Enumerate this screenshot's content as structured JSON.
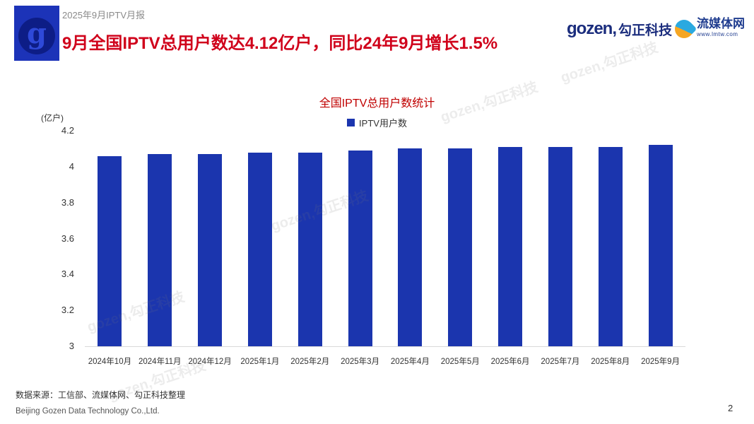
{
  "header": {
    "caption": "2025年9月IPTV月报",
    "title": "9月全国IPTV总用户数达4.12亿户，同比24年9月增长1.5%",
    "title_color": "#d0021b",
    "logo_letter": "g",
    "gozen_logo": {
      "text_en": "gozen,",
      "text_cn": "勾正科技"
    },
    "lmtw_logo": {
      "name": "流媒体网",
      "url": "www.lmtw.com"
    }
  },
  "chart_data": {
    "type": "bar",
    "title": "全国IPTV总用户数统计",
    "title_color": "#c00000",
    "unit_label": "(亿户)",
    "legend": [
      "IPTV用户数"
    ],
    "legend_position": "top",
    "categories": [
      "2024年10月",
      "2024年11月",
      "2024年12月",
      "2025年1月",
      "2025年2月",
      "2025年3月",
      "2025年4月",
      "2025年5月",
      "2025年6月",
      "2025年7月",
      "2025年8月",
      "2025年9月"
    ],
    "values": [
      4.06,
      4.07,
      4.07,
      4.08,
      4.08,
      4.09,
      4.1,
      4.1,
      4.11,
      4.11,
      4.11,
      4.12
    ],
    "ylim": [
      3,
      4.2
    ],
    "yticks": [
      "4.2",
      "4",
      "3.8",
      "3.6",
      "3.4",
      "3.2",
      "3"
    ],
    "ytick_values": [
      4.2,
      4.0,
      3.8,
      3.6,
      3.4,
      3.2,
      3.0
    ],
    "grid": false,
    "bar_color": "#1b35ae"
  },
  "watermark": {
    "text": "gozen,勾正科技"
  },
  "footer": {
    "source": "数据来源：工信部、流媒体网、勾正科技整理",
    "company": "Beijing Gozen Data Technology Co.,Ltd.",
    "page_number": "2"
  }
}
